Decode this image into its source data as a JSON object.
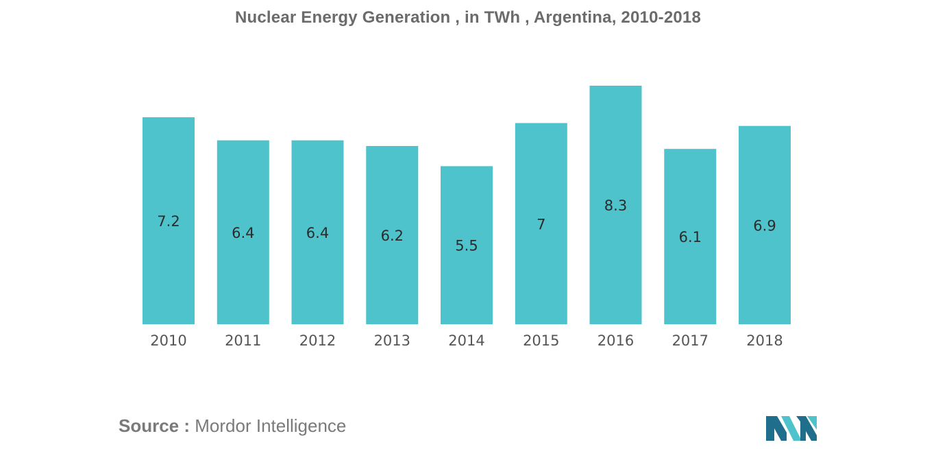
{
  "title": "Nuclear Energy Generation , in TWh , Argentina, 2010-2018",
  "source": {
    "label": "Source :",
    "value": "Mordor Intelligence"
  },
  "colors": {
    "bar": "#4fc3cb",
    "logo_dark": "#1f6e8c",
    "logo_light": "#4fc3cb"
  },
  "chart_data": {
    "type": "bar",
    "title": "Nuclear Energy Generation , in TWh , Argentina, 2010-2018",
    "categories": [
      "2010",
      "2011",
      "2012",
      "2013",
      "2014",
      "2015",
      "2016",
      "2017",
      "2018"
    ],
    "values": [
      7.2,
      6.4,
      6.4,
      6.2,
      5.5,
      7,
      8.3,
      6.1,
      6.9
    ],
    "xlabel": "",
    "ylabel": "",
    "ylim": [
      0,
      8.3
    ],
    "grid": false,
    "legend": "none",
    "data_labels": "inside-center"
  }
}
